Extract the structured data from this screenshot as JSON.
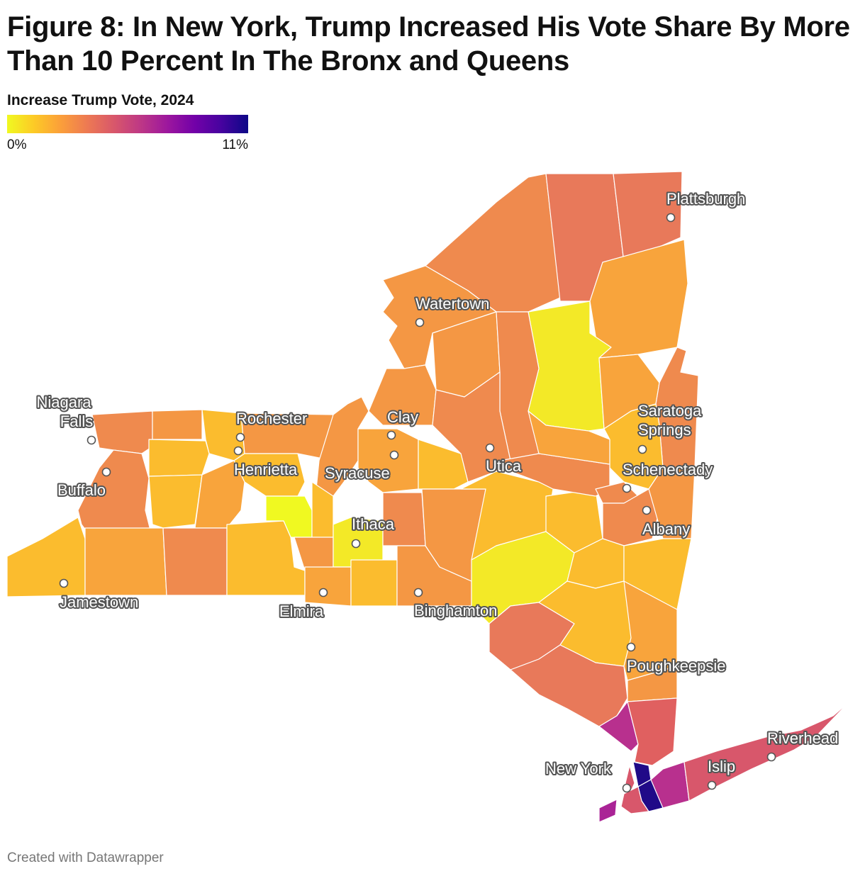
{
  "header": {
    "title": "Figure 8: In New York, Trump Increased His Vote Share By More Than 10 Percent In The Bronx and Queens"
  },
  "legend": {
    "title": "Increase Trump Vote, 2024",
    "min_label": "0%",
    "max_label": "11%",
    "min_value": 0,
    "max_value": 11
  },
  "footer": {
    "credit": "Created with Datawrapper"
  },
  "colors": {
    "scale": [
      "#f0f921",
      "#fdca26",
      "#fb9f3a",
      "#ed7953",
      "#d8576b",
      "#bd3786",
      "#9c179e",
      "#7201a8",
      "#46039f",
      "#0d0887"
    ],
    "region_border": "#ffffff",
    "label_halo": "#555555"
  },
  "cities": [
    {
      "name": "Plattsburgh"
    },
    {
      "name": "Watertown"
    },
    {
      "name": "Niagara Falls"
    },
    {
      "name": "Rochester"
    },
    {
      "name": "Clay"
    },
    {
      "name": "Saratoga Springs"
    },
    {
      "name": "Henrietta"
    },
    {
      "name": "Syracuse"
    },
    {
      "name": "Utica"
    },
    {
      "name": "Schenectady"
    },
    {
      "name": "Buffalo"
    },
    {
      "name": "Albany"
    },
    {
      "name": "Ithaca"
    },
    {
      "name": "Jamestown"
    },
    {
      "name": "Elmira"
    },
    {
      "name": "Binghamton"
    },
    {
      "name": "Poughkeepsie"
    },
    {
      "name": "Riverhead"
    },
    {
      "name": "New York"
    },
    {
      "name": "Islip"
    }
  ]
}
